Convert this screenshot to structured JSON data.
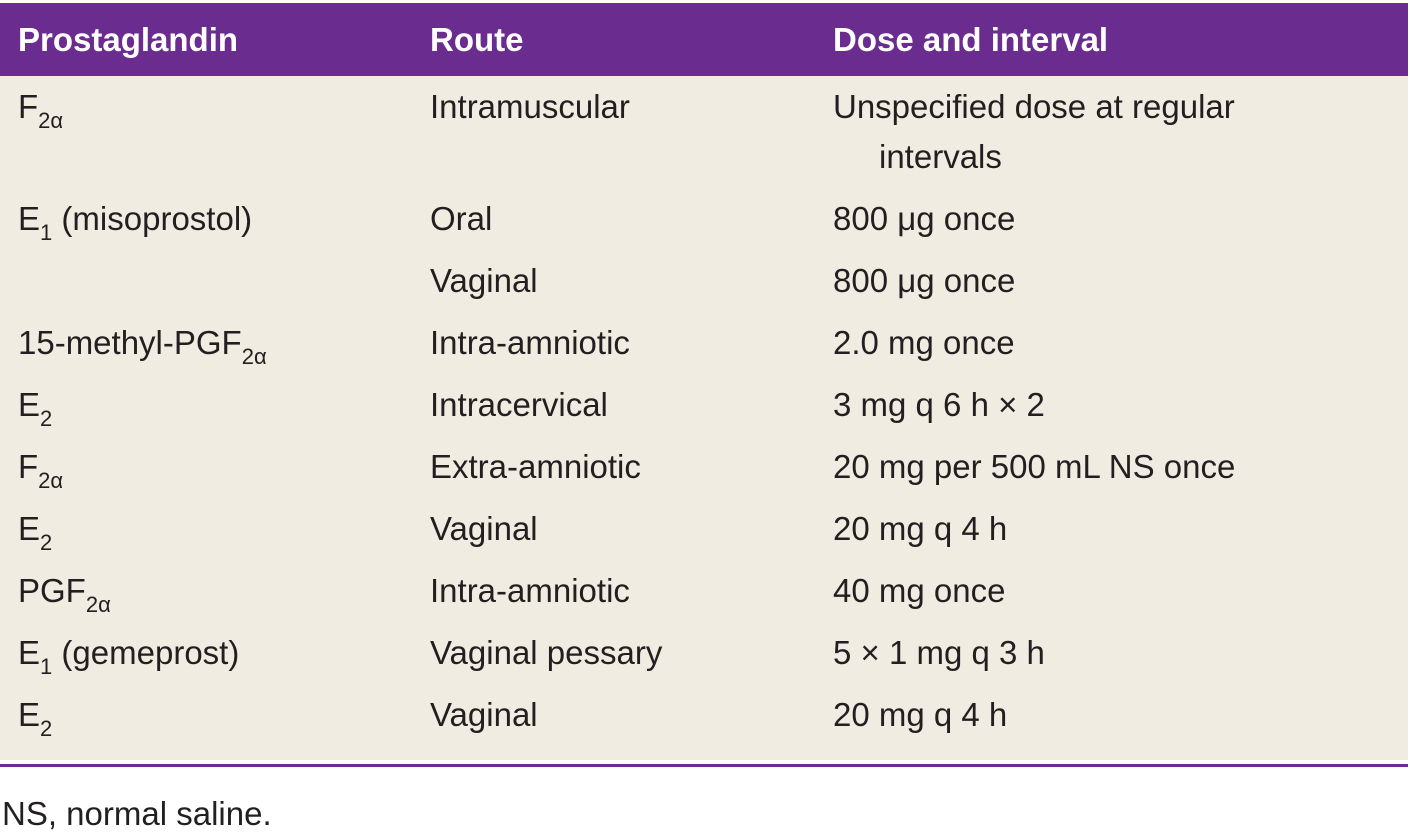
{
  "table": {
    "columns": [
      "Prostaglandin",
      "Route",
      "Dose and interval"
    ],
    "rows": [
      [
        {
          "text": "F",
          "sub": "2α"
        },
        "Intramuscular",
        "Unspecified dose at regular intervals"
      ],
      [
        {
          "text": "E",
          "sub": "1",
          "after": " (misoprostol)"
        },
        "Oral",
        "800 μg once"
      ],
      [
        null,
        "Vaginal",
        "800 μg once"
      ],
      [
        {
          "text": "15-methyl-PGF",
          "sub": "2α"
        },
        "Intra-amniotic",
        "2.0 mg once"
      ],
      [
        {
          "text": "E",
          "sub": "2"
        },
        "Intracervical",
        "3 mg q 6 h × 2"
      ],
      [
        {
          "text": "F",
          "sub": "2α"
        },
        "Extra-amniotic",
        "20 mg per 500 mL NS once"
      ],
      [
        {
          "text": "E",
          "sub": "2"
        },
        "Vaginal",
        "20 mg q 4 h"
      ],
      [
        {
          "text": "PGF",
          "sub": "2α"
        },
        "Intra-amniotic",
        "40 mg once"
      ],
      [
        {
          "text": "E",
          "sub": "1",
          "after": " (gemeprost)"
        },
        "Vaginal pessary",
        "5 × 1 mg q 3 h"
      ],
      [
        {
          "text": "E",
          "sub": "2"
        },
        "Vaginal",
        "20 mg q 4 h"
      ]
    ]
  },
  "footnote": "NS, normal saline."
}
